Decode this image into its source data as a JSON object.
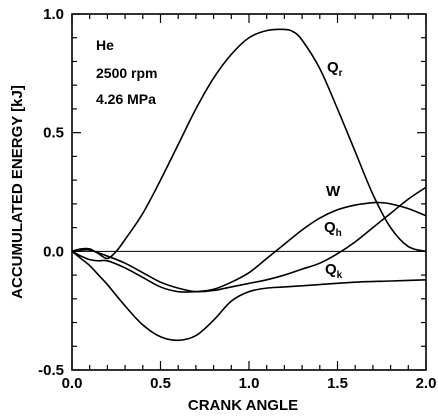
{
  "chart_data": {
    "type": "line",
    "xlabel": "CRANK ANGLE",
    "ylabel": "ACCUMULATED ENERGY [kJ]",
    "xlim": [
      0.0,
      2.0
    ],
    "ylim": [
      -0.5,
      1.0
    ],
    "x_ticks": [
      "0.0",
      "0.5",
      "1.0",
      "1.5",
      "2.0"
    ],
    "y_ticks": [
      "-0.5",
      "0.0",
      "0.5",
      "1.0"
    ],
    "grid": false,
    "annotations": [
      "He",
      "2500 rpm",
      "4.26 MPa"
    ],
    "series": [
      {
        "name": "Qr",
        "label_main": "Q",
        "label_sub": "r",
        "x": [
          0.0,
          0.05,
          0.1,
          0.15,
          0.2,
          0.25,
          0.3,
          0.4,
          0.5,
          0.6,
          0.7,
          0.8,
          0.9,
          1.0,
          1.1,
          1.2,
          1.25,
          1.3,
          1.4,
          1.5,
          1.6,
          1.7,
          1.8,
          1.9,
          2.0
        ],
        "values": [
          0.0,
          0.01,
          0.01,
          -0.01,
          -0.03,
          0.0,
          0.05,
          0.16,
          0.3,
          0.45,
          0.6,
          0.73,
          0.83,
          0.9,
          0.93,
          0.935,
          0.925,
          0.89,
          0.77,
          0.6,
          0.42,
          0.24,
          0.1,
          0.02,
          0.0
        ]
      },
      {
        "name": "W",
        "label_main": "W",
        "label_sub": "",
        "x": [
          0.0,
          0.05,
          0.1,
          0.15,
          0.2,
          0.3,
          0.4,
          0.5,
          0.6,
          0.7,
          0.8,
          0.9,
          1.0,
          1.1,
          1.2,
          1.3,
          1.4,
          1.5,
          1.6,
          1.7,
          1.75,
          1.8,
          1.9,
          2.0
        ],
        "values": [
          0.0,
          -0.02,
          -0.035,
          -0.04,
          -0.04,
          -0.07,
          -0.11,
          -0.15,
          -0.17,
          -0.17,
          -0.16,
          -0.13,
          -0.09,
          -0.03,
          0.03,
          0.09,
          0.14,
          0.175,
          0.195,
          0.205,
          0.205,
          0.2,
          0.18,
          0.15
        ]
      },
      {
        "name": "Qh",
        "label_main": "Q",
        "label_sub": "h",
        "x": [
          0.0,
          0.05,
          0.1,
          0.2,
          0.3,
          0.4,
          0.5,
          0.6,
          0.7,
          0.8,
          0.9,
          1.0,
          1.1,
          1.2,
          1.3,
          1.4,
          1.5,
          1.6,
          1.7,
          1.8,
          1.9,
          2.0
        ],
        "values": [
          0.0,
          0.005,
          0.005,
          -0.02,
          -0.05,
          -0.09,
          -0.13,
          -0.155,
          -0.17,
          -0.165,
          -0.15,
          -0.135,
          -0.12,
          -0.1,
          -0.075,
          -0.05,
          -0.01,
          0.04,
          0.1,
          0.16,
          0.22,
          0.27
        ]
      },
      {
        "name": "Qk",
        "label_main": "Q",
        "label_sub": "k",
        "x": [
          0.0,
          0.05,
          0.1,
          0.15,
          0.2,
          0.3,
          0.4,
          0.5,
          0.6,
          0.7,
          0.8,
          0.9,
          1.0,
          1.1,
          1.2,
          1.4,
          1.6,
          1.8,
          2.0
        ],
        "values": [
          0.0,
          -0.03,
          -0.06,
          -0.1,
          -0.14,
          -0.23,
          -0.31,
          -0.36,
          -0.375,
          -0.355,
          -0.29,
          -0.21,
          -0.17,
          -0.155,
          -0.15,
          -0.14,
          -0.13,
          -0.125,
          -0.12
        ]
      }
    ]
  }
}
